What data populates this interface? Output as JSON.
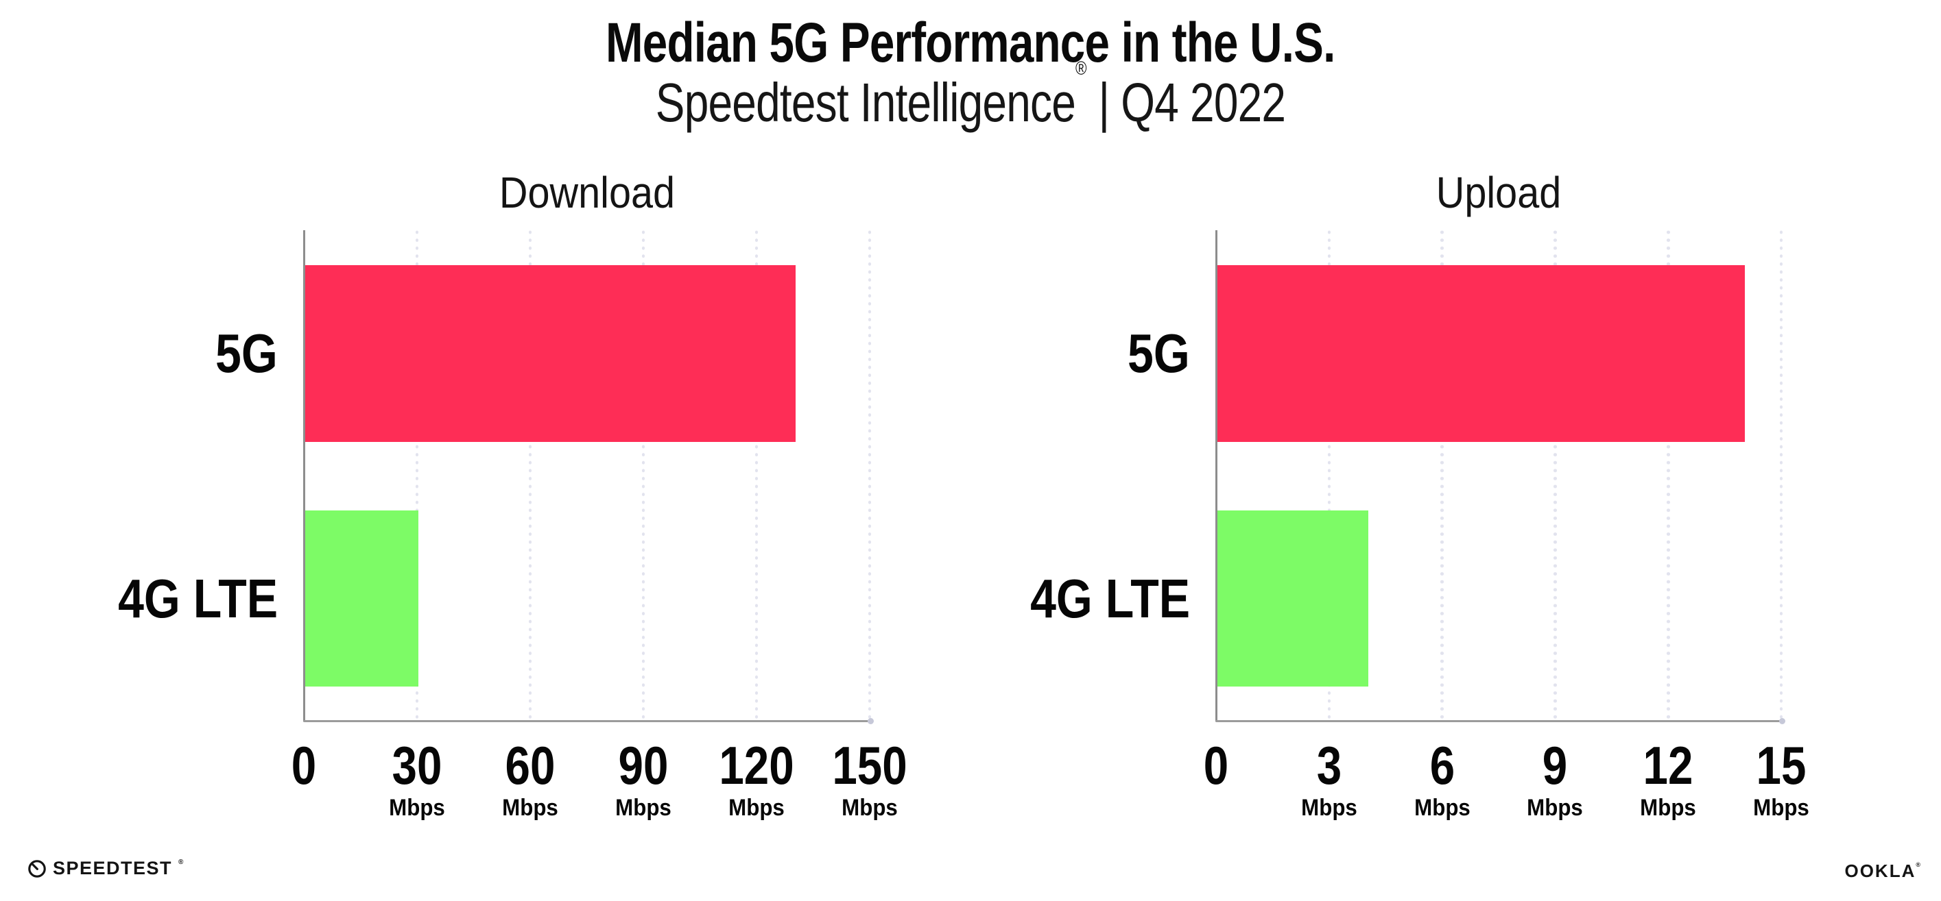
{
  "page": {
    "title": "Median 5G Performance in the U.S.",
    "subtitle_brand": "Speedtest Intelligence",
    "subtitle_reg": "®",
    "subtitle_rest": " | Q4 2022"
  },
  "footer": {
    "speedtest_logo_text": "SPEEDTEST",
    "speedtest_reg": "®",
    "ookla_logo_text": "OOKLA",
    "ookla_reg": "®"
  },
  "colors": {
    "bar_5g": "#FE2D56",
    "bar_4g_lte": "#7DFB66",
    "axis_line": "#9b9b9b",
    "spine": "#8d8d8d",
    "gridline_dots": "#e2e3ee",
    "text": "#060606"
  },
  "chart_data": [
    {
      "type": "bar",
      "orientation": "horizontal",
      "title": "Download",
      "categories": [
        "5G",
        "4G LTE"
      ],
      "values": [
        130,
        30
      ],
      "unit": "Mbps",
      "xlim": [
        0,
        150
      ],
      "xticks": [
        0,
        30,
        60,
        90,
        120,
        150
      ],
      "bar_colors": [
        "#FE2D56",
        "#7DFB66"
      ],
      "grid": "dotted-vertical",
      "legend": "none"
    },
    {
      "type": "bar",
      "orientation": "horizontal",
      "title": "Upload",
      "categories": [
        "5G",
        "4G LTE"
      ],
      "values": [
        14,
        4
      ],
      "unit": "Mbps",
      "xlim": [
        0,
        15
      ],
      "xticks": [
        0,
        3,
        6,
        9,
        12,
        15
      ],
      "bar_colors": [
        "#FE2D56",
        "#7DFB66"
      ],
      "grid": "dotted-vertical",
      "legend": "none"
    }
  ]
}
